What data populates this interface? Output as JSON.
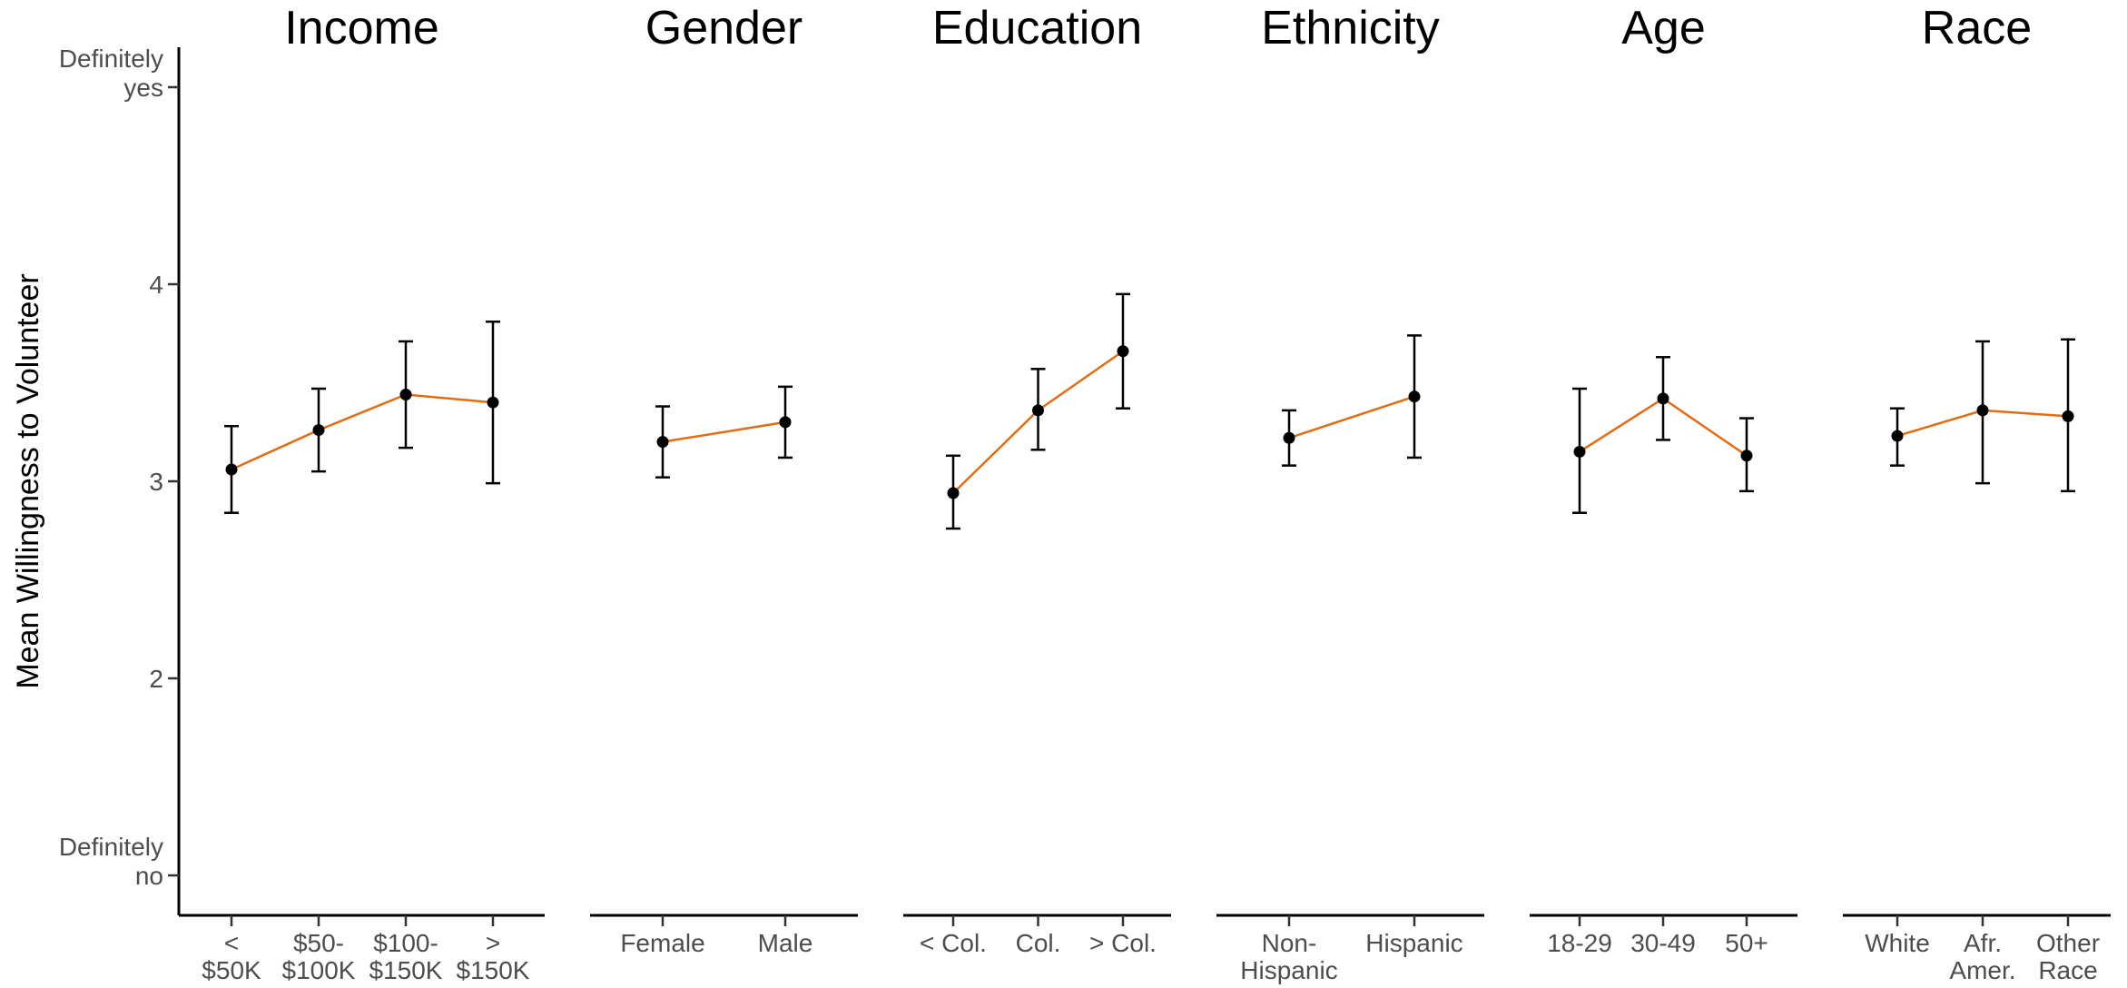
{
  "chart_data": {
    "type": "line",
    "ylabel": "Mean Willingness to Volunteer",
    "ylim": [
      1,
      5.2
    ],
    "y_ticks": [
      {
        "value": 1,
        "label": [
          "Definitely",
          "no"
        ]
      },
      {
        "value": 2,
        "label": [
          "2"
        ]
      },
      {
        "value": 3,
        "label": [
          "3"
        ]
      },
      {
        "value": 4,
        "label": [
          "4"
        ]
      },
      {
        "value": 5,
        "label": [
          "Definitely",
          "yes"
        ]
      }
    ],
    "grid": false,
    "line_color": "#e06c14",
    "panels": [
      {
        "title": "Income",
        "categories": [
          [
            "<",
            "$50K"
          ],
          [
            "$50-",
            "$100K"
          ],
          [
            "$100-",
            "$150K"
          ],
          [
            ">",
            "$150K"
          ]
        ],
        "values": [
          3.06,
          3.26,
          3.44,
          3.4
        ],
        "lower": [
          2.84,
          3.05,
          3.17,
          2.99
        ],
        "upper": [
          3.28,
          3.47,
          3.71,
          3.81
        ]
      },
      {
        "title": "Gender",
        "categories": [
          [
            "Female"
          ],
          [
            "Male"
          ]
        ],
        "values": [
          3.2,
          3.3
        ],
        "lower": [
          3.02,
          3.12
        ],
        "upper": [
          3.38,
          3.48
        ]
      },
      {
        "title": "Education",
        "categories": [
          [
            "< Col."
          ],
          [
            "Col."
          ],
          [
            "> Col."
          ]
        ],
        "values": [
          2.94,
          3.36,
          3.66
        ],
        "lower": [
          2.76,
          3.16,
          3.37
        ],
        "upper": [
          3.13,
          3.57,
          3.95
        ]
      },
      {
        "title": "Ethnicity",
        "categories": [
          [
            "Non-",
            "Hispanic"
          ],
          [
            "Hispanic"
          ]
        ],
        "values": [
          3.22,
          3.43
        ],
        "lower": [
          3.08,
          3.12
        ],
        "upper": [
          3.36,
          3.74
        ]
      },
      {
        "title": "Age",
        "categories": [
          [
            "18-29"
          ],
          [
            "30-49"
          ],
          [
            "50+"
          ]
        ],
        "values": [
          3.15,
          3.42,
          3.13
        ],
        "lower": [
          2.84,
          3.21,
          2.95
        ],
        "upper": [
          3.47,
          3.63,
          3.32
        ]
      },
      {
        "title": "Race",
        "categories": [
          [
            "White"
          ],
          [
            "Afr.",
            "Amer."
          ],
          [
            "Other",
            "Race"
          ]
        ],
        "values": [
          3.23,
          3.36,
          3.33
        ],
        "lower": [
          3.08,
          2.99,
          2.95
        ],
        "upper": [
          3.37,
          3.71,
          3.72
        ]
      }
    ]
  }
}
